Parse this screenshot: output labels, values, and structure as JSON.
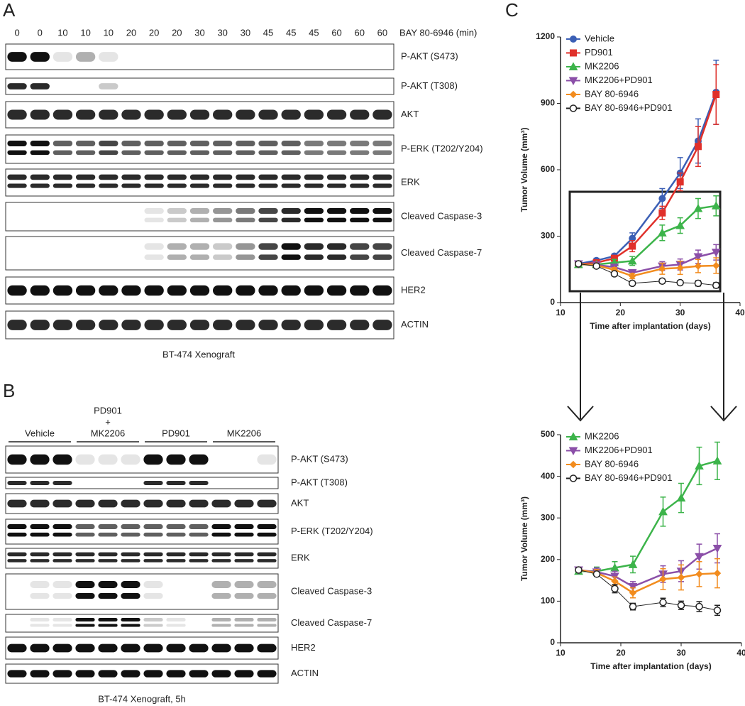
{
  "panel_a": {
    "letter": "A",
    "lanes": [
      0,
      0,
      10,
      10,
      10,
      20,
      20,
      20,
      30,
      30,
      30,
      45,
      45,
      45,
      60,
      60,
      60
    ],
    "lane_title": "BAY 80-6946 (min)",
    "rows": [
      "P-AKT (S473)",
      "P-AKT (T308)",
      "AKT",
      "P-ERK (T202/Y204)",
      "ERK",
      "Cleaved Caspase-3",
      "Cleaved Caspase-7",
      "HER2",
      "ACTIN"
    ],
    "caption": "BT-474 Xenograft"
  },
  "panel_b": {
    "letter": "B",
    "groups": [
      [
        "Vehicle"
      ],
      [
        "PD901",
        "+",
        "MK2206"
      ],
      [
        "PD901"
      ],
      [
        "MK2206"
      ]
    ],
    "rows": [
      "P-AKT (S473)",
      "P-AKT (T308)",
      "AKT",
      "P-ERK (T202/Y204)",
      "ERK",
      "Cleaved Caspase-3",
      "Cleaved Caspase-7",
      "HER2",
      "ACTIN"
    ],
    "caption": "BT-474 Xenograft, 5h"
  },
  "panel_c": {
    "letter": "C"
  },
  "chart_data": [
    {
      "type": "line",
      "xlabel": "Time after implantation (days)",
      "ylabel": "Tumor Volume (mm³)",
      "x": [
        13,
        16,
        19,
        22,
        27,
        30,
        33,
        36
      ],
      "xlim": [
        10,
        40
      ],
      "xticks": [
        10,
        20,
        30,
        40
      ],
      "ylim": [
        0,
        1200
      ],
      "yticks": [
        0,
        300,
        600,
        900,
        1200
      ],
      "legend": "upper left",
      "series": [
        {
          "name": "Vehicle",
          "color": "#3b5fb5",
          "marker": "circle",
          "values": [
            175,
            190,
            210,
            290,
            470,
            585,
            730,
            950
          ],
          "errors": [
            5,
            10,
            10,
            25,
            45,
            70,
            100,
            145
          ]
        },
        {
          "name": "PD901",
          "color": "#e0302a",
          "marker": "square",
          "values": [
            172,
            180,
            200,
            255,
            405,
            545,
            705,
            940
          ],
          "errors": [
            5,
            10,
            10,
            25,
            30,
            40,
            90,
            135
          ]
        },
        {
          "name": "MK2206",
          "color": "#3cb44a",
          "marker": "triangle-up",
          "values": [
            172,
            172,
            180,
            188,
            315,
            348,
            425,
            437
          ],
          "errors": [
            5,
            10,
            15,
            20,
            35,
            35,
            45,
            45
          ]
        },
        {
          "name": "MK2206+PD901",
          "color": "#8b4fa8",
          "marker": "triangle-down",
          "values": [
            175,
            170,
            160,
            135,
            165,
            172,
            207,
            227
          ],
          "errors": [
            5,
            10,
            12,
            12,
            20,
            25,
            30,
            35
          ]
        },
        {
          "name": "BAY 80-6946",
          "color": "#f28c1e",
          "marker": "diamond",
          "values": [
            175,
            168,
            148,
            120,
            153,
            157,
            165,
            167
          ],
          "errors": [
            5,
            8,
            10,
            12,
            25,
            30,
            30,
            35
          ]
        },
        {
          "name": "BAY 80-6946+PD901",
          "color": "#222222",
          "marker": "open-circle",
          "values": [
            175,
            165,
            130,
            87,
            97,
            90,
            87,
            78
          ],
          "errors": [
            5,
            5,
            10,
            8,
            10,
            10,
            12,
            12
          ]
        }
      ]
    },
    {
      "type": "line",
      "xlabel": "Time after implantation (days)",
      "ylabel": "Tumor Volume (mm³)",
      "x": [
        13,
        16,
        19,
        22,
        27,
        30,
        33,
        36
      ],
      "xlim": [
        10,
        40
      ],
      "xticks": [
        10,
        20,
        30,
        40
      ],
      "ylim": [
        0,
        500
      ],
      "yticks": [
        0,
        100,
        200,
        300,
        400,
        500
      ],
      "legend": "upper left",
      "series": [
        {
          "name": "MK2206",
          "color": "#3cb44a",
          "marker": "triangle-up",
          "values": [
            172,
            172,
            180,
            188,
            315,
            348,
            425,
            437
          ],
          "errors": [
            5,
            10,
            15,
            20,
            35,
            35,
            45,
            45
          ]
        },
        {
          "name": "MK2206+PD901",
          "color": "#8b4fa8",
          "marker": "triangle-down",
          "values": [
            175,
            170,
            160,
            135,
            165,
            172,
            207,
            227
          ],
          "errors": [
            5,
            10,
            12,
            12,
            20,
            25,
            30,
            35
          ]
        },
        {
          "name": "BAY 80-6946",
          "color": "#f28c1e",
          "marker": "diamond",
          "values": [
            175,
            168,
            148,
            120,
            153,
            157,
            165,
            167
          ],
          "errors": [
            5,
            8,
            10,
            12,
            25,
            30,
            30,
            35
          ]
        },
        {
          "name": "BAY 80-6946+PD901",
          "color": "#222222",
          "marker": "open-circle",
          "values": [
            175,
            165,
            130,
            87,
            97,
            90,
            87,
            78
          ],
          "errors": [
            5,
            5,
            10,
            8,
            10,
            10,
            12,
            12
          ]
        }
      ]
    }
  ]
}
